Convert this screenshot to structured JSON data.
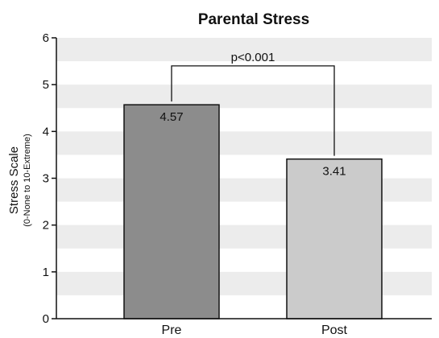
{
  "chart_data": {
    "type": "bar",
    "title": "Parental Stress",
    "ylabel": "Stress Scale",
    "ylabel_sub": "(0-None to 10-Extreme)",
    "xlabel": "",
    "categories": [
      "Pre",
      "Post"
    ],
    "values": [
      4.57,
      3.41
    ],
    "data_labels": [
      "4.57",
      "3.41"
    ],
    "bar_colors": [
      "#8c8c8c",
      "#cbcbcb"
    ],
    "ylim": [
      0,
      6
    ],
    "yticks": [
      "0",
      "1",
      "2",
      "3",
      "4",
      "5",
      "6"
    ],
    "grid": "alternating horizontal bands",
    "band_color": "#ececec",
    "legend": "none",
    "annotation": {
      "text": "p<0.001",
      "from_category": "Pre",
      "to_category": "Post",
      "y": 5.4
    }
  }
}
